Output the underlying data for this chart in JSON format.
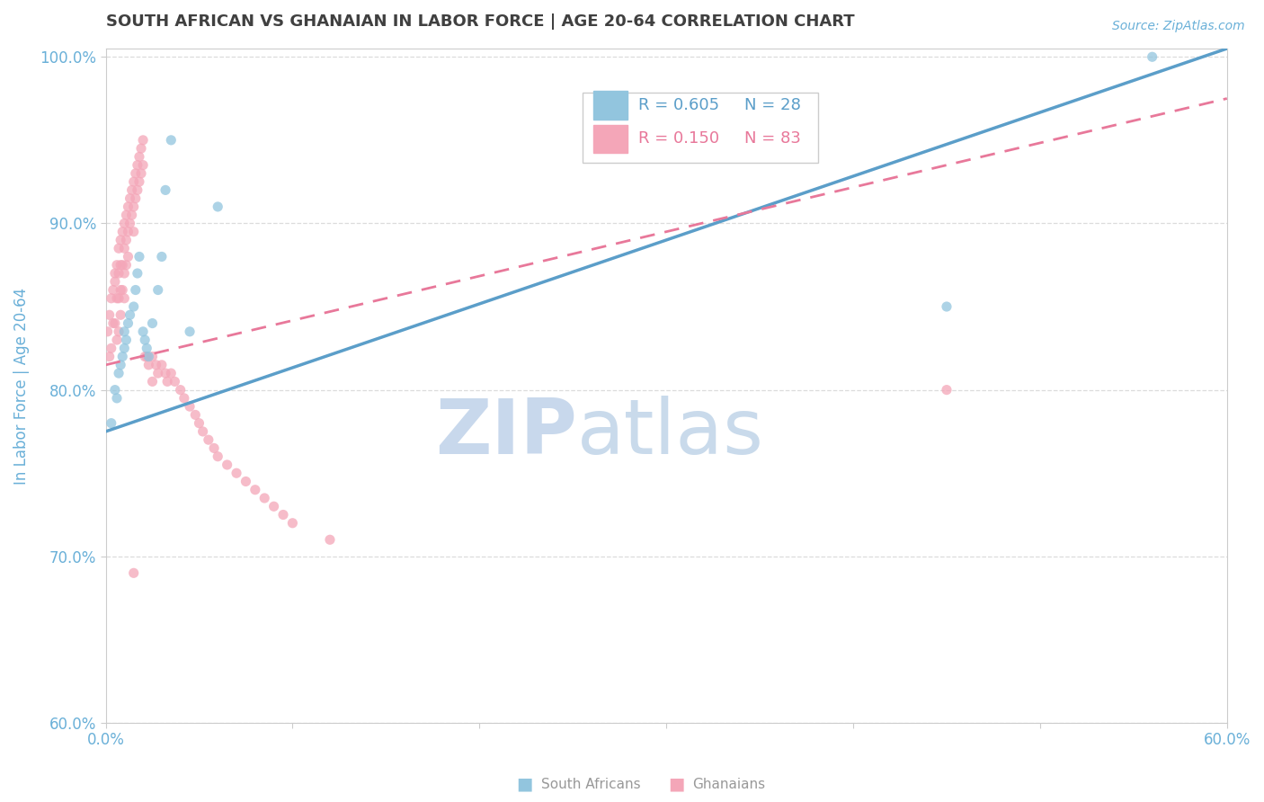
{
  "title": "SOUTH AFRICAN VS GHANAIAN IN LABOR FORCE | AGE 20-64 CORRELATION CHART",
  "source": "Source: ZipAtlas.com",
  "ylabel": "In Labor Force | Age 20-64",
  "xlim": [
    0.0,
    0.6
  ],
  "ylim": [
    0.6,
    1.005
  ],
  "xticks": [
    0.0,
    0.1,
    0.2,
    0.3,
    0.4,
    0.5,
    0.6
  ],
  "yticks": [
    0.6,
    0.7,
    0.8,
    0.9,
    1.0
  ],
  "legend_r1": "R = 0.605",
  "legend_n1": "N = 28",
  "legend_r2": "R = 0.150",
  "legend_n2": "N = 83",
  "color_blue": "#92c5de",
  "color_pink": "#f4a6b8",
  "color_blue_line": "#5b9ec9",
  "color_pink_line": "#e8789a",
  "color_blue_text": "#5b9ec9",
  "color_pink_text": "#e8789a",
  "color_axis_text": "#6ab0d8",
  "color_grid": "#d9d9d9",
  "watermark_zip": "ZIP",
  "watermark_atlas": "atlas",
  "watermark_color": "#d0dff0",
  "watermark_atlas_color": "#b8cfe8",
  "background_color": "#ffffff",
  "title_color": "#404040",
  "sa_x": [
    0.003,
    0.005,
    0.006,
    0.007,
    0.008,
    0.009,
    0.01,
    0.01,
    0.011,
    0.012,
    0.013,
    0.015,
    0.016,
    0.017,
    0.018,
    0.02,
    0.021,
    0.022,
    0.023,
    0.025,
    0.028,
    0.03,
    0.032,
    0.035,
    0.045,
    0.06,
    0.45,
    0.56
  ],
  "sa_y": [
    0.78,
    0.8,
    0.795,
    0.81,
    0.815,
    0.82,
    0.825,
    0.835,
    0.83,
    0.84,
    0.845,
    0.85,
    0.86,
    0.87,
    0.88,
    0.835,
    0.83,
    0.825,
    0.82,
    0.84,
    0.86,
    0.88,
    0.92,
    0.95,
    0.835,
    0.91,
    0.85,
    1.0
  ],
  "gh_x": [
    0.001,
    0.002,
    0.002,
    0.003,
    0.003,
    0.004,
    0.004,
    0.005,
    0.005,
    0.005,
    0.006,
    0.006,
    0.006,
    0.007,
    0.007,
    0.007,
    0.007,
    0.008,
    0.008,
    0.008,
    0.008,
    0.009,
    0.009,
    0.009,
    0.01,
    0.01,
    0.01,
    0.01,
    0.011,
    0.011,
    0.011,
    0.012,
    0.012,
    0.012,
    0.013,
    0.013,
    0.014,
    0.014,
    0.015,
    0.015,
    0.015,
    0.016,
    0.016,
    0.017,
    0.017,
    0.018,
    0.018,
    0.019,
    0.019,
    0.02,
    0.02,
    0.021,
    0.022,
    0.023,
    0.025,
    0.025,
    0.027,
    0.028,
    0.03,
    0.032,
    0.033,
    0.035,
    0.037,
    0.04,
    0.042,
    0.045,
    0.048,
    0.05,
    0.052,
    0.055,
    0.058,
    0.06,
    0.065,
    0.07,
    0.075,
    0.08,
    0.085,
    0.09,
    0.095,
    0.1,
    0.12,
    0.45,
    0.015
  ],
  "gh_y": [
    0.835,
    0.845,
    0.82,
    0.855,
    0.825,
    0.86,
    0.84,
    0.87,
    0.865,
    0.84,
    0.875,
    0.855,
    0.83,
    0.885,
    0.87,
    0.855,
    0.835,
    0.89,
    0.875,
    0.86,
    0.845,
    0.895,
    0.875,
    0.86,
    0.9,
    0.885,
    0.87,
    0.855,
    0.905,
    0.89,
    0.875,
    0.91,
    0.895,
    0.88,
    0.915,
    0.9,
    0.92,
    0.905,
    0.925,
    0.91,
    0.895,
    0.93,
    0.915,
    0.935,
    0.92,
    0.94,
    0.925,
    0.945,
    0.93,
    0.95,
    0.935,
    0.82,
    0.82,
    0.815,
    0.82,
    0.805,
    0.815,
    0.81,
    0.815,
    0.81,
    0.805,
    0.81,
    0.805,
    0.8,
    0.795,
    0.79,
    0.785,
    0.78,
    0.775,
    0.77,
    0.765,
    0.76,
    0.755,
    0.75,
    0.745,
    0.74,
    0.735,
    0.73,
    0.725,
    0.72,
    0.71,
    0.8,
    0.69
  ],
  "sa_line_x0": 0.0,
  "sa_line_y0": 0.775,
  "sa_line_x1": 0.6,
  "sa_line_y1": 1.005,
  "gh_line_x0": 0.0,
  "gh_line_y0": 0.815,
  "gh_line_x1": 0.6,
  "gh_line_y1": 0.975
}
